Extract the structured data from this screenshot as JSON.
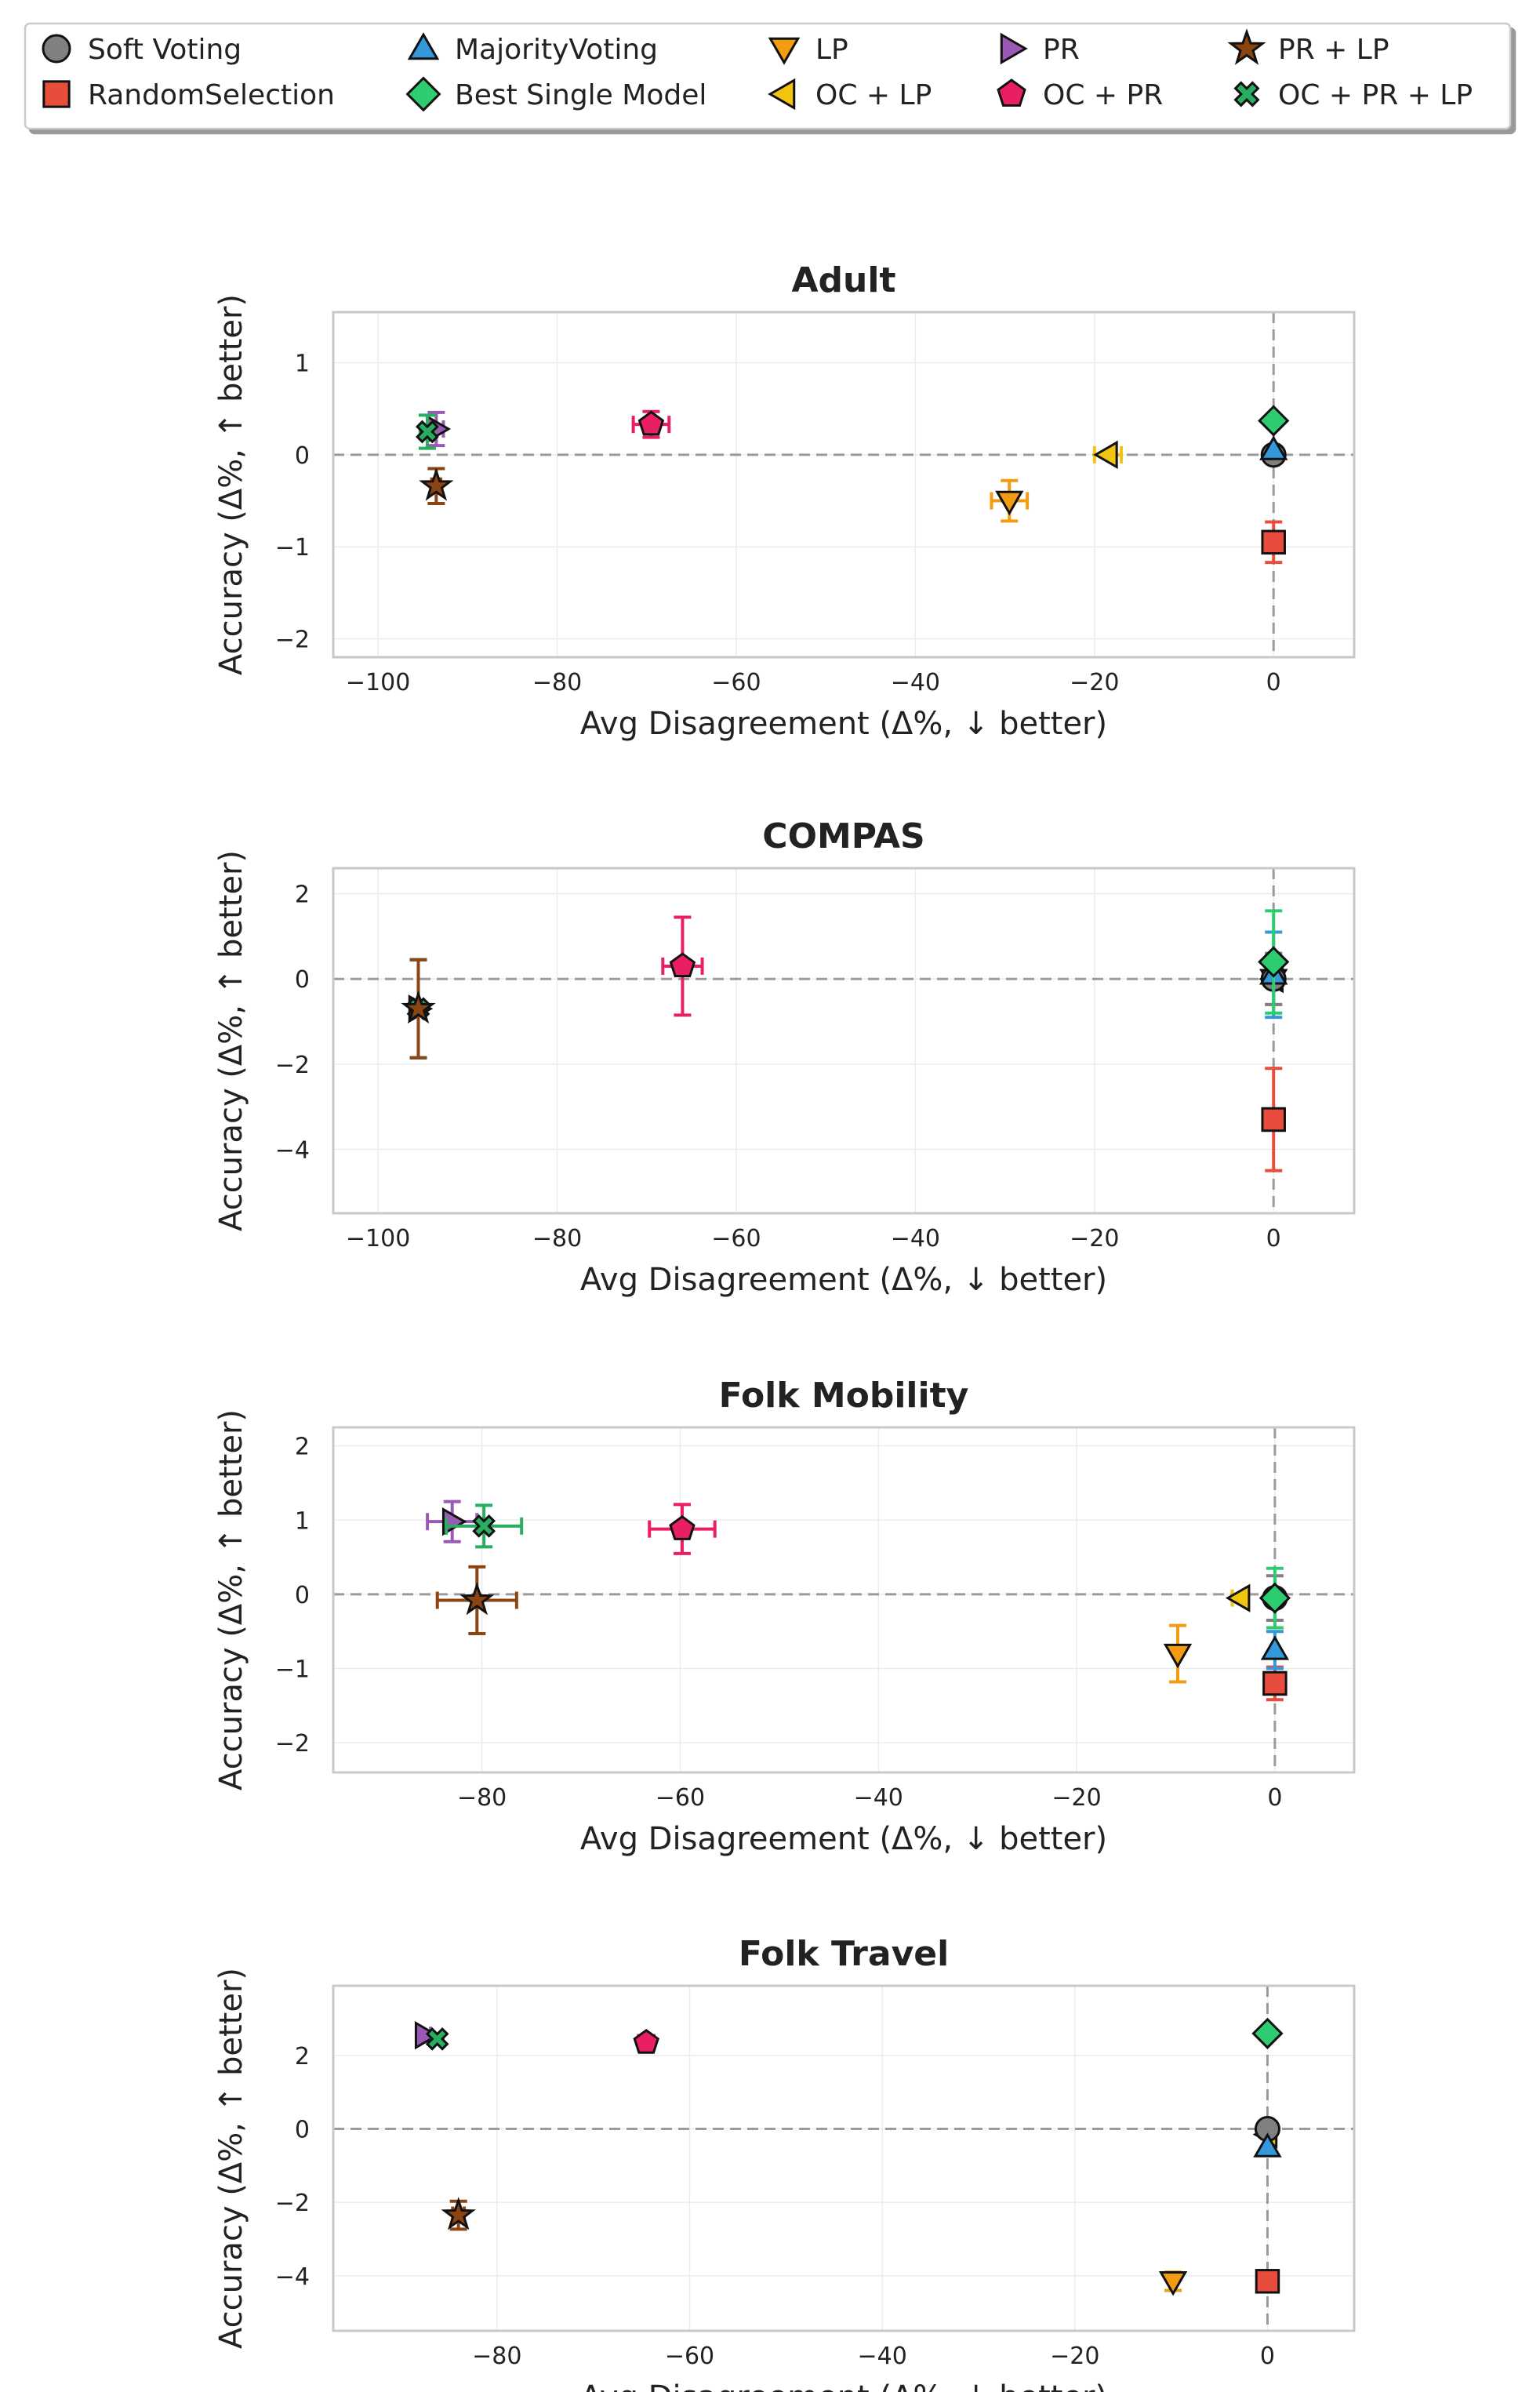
{
  "legend": {
    "entries": [
      {
        "key": "soft_voting",
        "label": "Soft Voting",
        "marker": "circle",
        "color": "#808080"
      },
      {
        "key": "random_selection",
        "label": "RandomSelection",
        "marker": "square",
        "color": "#e74c3c"
      },
      {
        "key": "majority_voting",
        "label": "MajorityVoting",
        "marker": "triangle-up",
        "color": "#3498db"
      },
      {
        "key": "best_single",
        "label": "Best Single Model",
        "marker": "diamond",
        "color": "#2ecc71"
      },
      {
        "key": "lp",
        "label": "LP",
        "marker": "triangle-down",
        "color": "#f39c12"
      },
      {
        "key": "oc_lp",
        "label": "OC + LP",
        "marker": "triangle-left",
        "color": "#f1c40f"
      },
      {
        "key": "pr",
        "label": "PR",
        "marker": "triangle-right",
        "color": "#9b59b6"
      },
      {
        "key": "oc_pr",
        "label": "OC + PR",
        "marker": "pentagon",
        "color": "#e91e63"
      },
      {
        "key": "pr_lp",
        "label": "PR + LP",
        "marker": "star",
        "color": "#8b4513"
      },
      {
        "key": "oc_pr_lp",
        "label": "OC + PR + LP",
        "marker": "x",
        "color": "#27ae60"
      }
    ]
  },
  "chart_data": [
    {
      "type": "scatter",
      "title": "Adult",
      "xlabel": "Avg Disagreement (Δ%, ↓ better)",
      "ylabel": "Accuracy (Δ%, ↑ better)",
      "xlim": [
        -105,
        9
      ],
      "ylim": [
        -2.2,
        1.55
      ],
      "xticks": [
        -100,
        -80,
        -60,
        -40,
        -20,
        0
      ],
      "yticks": [
        -2,
        -1,
        0,
        1
      ],
      "points": [
        {
          "series": "soft_voting",
          "x": 0,
          "y": 0.0,
          "xerr": 0,
          "yerr": 0
        },
        {
          "series": "random_selection",
          "x": 0,
          "y": -0.95,
          "xerr": 0,
          "yerr": 0.22
        },
        {
          "series": "majority_voting",
          "x": 0,
          "y": 0.05,
          "xerr": 0,
          "yerr": 0
        },
        {
          "series": "best_single",
          "x": 0,
          "y": 0.37,
          "xerr": 0,
          "yerr": 0
        },
        {
          "series": "lp",
          "x": -29.5,
          "y": -0.5,
          "xerr": 2,
          "yerr": 0.22
        },
        {
          "series": "oc_lp",
          "x": -18.5,
          "y": 0.0,
          "xerr": 1.5,
          "yerr": 0
        },
        {
          "series": "pr",
          "x": -93.5,
          "y": 0.28,
          "xerr": 0.8,
          "yerr": 0.18
        },
        {
          "series": "oc_pr",
          "x": -69.5,
          "y": 0.33,
          "xerr": 2,
          "yerr": 0.14
        },
        {
          "series": "pr_lp",
          "x": -93.5,
          "y": -0.34,
          "xerr": 0.5,
          "yerr": 0.19
        },
        {
          "series": "oc_pr_lp",
          "x": -94.5,
          "y": 0.25,
          "xerr": 0.8,
          "yerr": 0.18
        }
      ]
    },
    {
      "type": "scatter",
      "title": "COMPAS",
      "xlabel": "Avg Disagreement (Δ%, ↓ better)",
      "ylabel": "Accuracy (Δ%, ↑ better)",
      "xlim": [
        -105,
        9
      ],
      "ylim": [
        -5.5,
        2.6
      ],
      "xticks": [
        -100,
        -80,
        -60,
        -40,
        -20,
        0
      ],
      "yticks": [
        -4,
        -2,
        0,
        2
      ],
      "points": [
        {
          "series": "soft_voting",
          "x": 0,
          "y": 0.0,
          "xerr": 0,
          "yerr": 0.6
        },
        {
          "series": "random_selection",
          "x": 0,
          "y": -3.3,
          "xerr": 0,
          "yerr": 1.2
        },
        {
          "series": "majority_voting",
          "x": 0,
          "y": 0.1,
          "xerr": 0,
          "yerr": 1.0
        },
        {
          "series": "best_single",
          "x": 0,
          "y": 0.4,
          "xerr": 0,
          "yerr": 1.2
        },
        {
          "series": "lp",
          "x": 0,
          "y": 0.0,
          "xerr": 0,
          "yerr": 0.6
        },
        {
          "series": "oc_lp",
          "x": 0,
          "y": 0.0,
          "xerr": 0,
          "yerr": 0
        },
        {
          "series": "pr",
          "x": -95.5,
          "y": -0.7,
          "xerr": 0,
          "yerr": 1.15
        },
        {
          "series": "oc_pr",
          "x": -66,
          "y": 0.3,
          "xerr": 2.2,
          "yerr": 1.15
        },
        {
          "series": "pr_lp",
          "x": -95.5,
          "y": -0.7,
          "xerr": 0,
          "yerr": 1.15
        },
        {
          "series": "oc_pr_lp",
          "x": -95.5,
          "y": -0.7,
          "xerr": 0,
          "yerr": 1.15
        }
      ]
    },
    {
      "type": "scatter",
      "title": "Folk Mobility",
      "xlabel": "Avg Disagreement (Δ%, ↓ better)",
      "ylabel": "Accuracy (Δ%, ↑ better)",
      "xlim": [
        -95,
        8
      ],
      "ylim": [
        -2.4,
        2.25
      ],
      "xticks": [
        -80,
        -60,
        -40,
        -20,
        0
      ],
      "yticks": [
        -2,
        -1,
        0,
        1,
        2
      ],
      "points": [
        {
          "series": "soft_voting",
          "x": 0,
          "y": -0.05,
          "xerr": 0,
          "yerr": 0.3
        },
        {
          "series": "random_selection",
          "x": 0,
          "y": -1.2,
          "xerr": 0,
          "yerr": 0.22
        },
        {
          "series": "majority_voting",
          "x": 0,
          "y": -0.75,
          "xerr": 0,
          "yerr": 0.25
        },
        {
          "series": "best_single",
          "x": 0,
          "y": -0.05,
          "xerr": 0,
          "yerr": 0.4
        },
        {
          "series": "lp",
          "x": -9.8,
          "y": -0.8,
          "xerr": 0,
          "yerr": 0.38
        },
        {
          "series": "oc_lp",
          "x": -3.5,
          "y": -0.05,
          "xerr": 0.8,
          "yerr": 0
        },
        {
          "series": "pr",
          "x": -83,
          "y": 0.98,
          "xerr": 2.5,
          "yerr": 0.27
        },
        {
          "series": "oc_pr",
          "x": -59.8,
          "y": 0.88,
          "xerr": 3.3,
          "yerr": 0.33
        },
        {
          "series": "pr_lp",
          "x": -80.5,
          "y": -0.08,
          "xerr": 4,
          "yerr": 0.45
        },
        {
          "series": "oc_pr_lp",
          "x": -79.8,
          "y": 0.92,
          "xerr": 3.8,
          "yerr": 0.28
        }
      ]
    },
    {
      "type": "scatter",
      "title": "Folk Travel",
      "xlabel": "Avg Disagreement (Δ%, ↓ better)",
      "ylabel": "Accuracy (Δ%, ↑ better)",
      "xlim": [
        -97,
        9
      ],
      "ylim": [
        -5.5,
        3.9
      ],
      "xticks": [
        -80,
        -60,
        -40,
        -20,
        0
      ],
      "yticks": [
        -4,
        -2,
        0,
        2
      ],
      "points": [
        {
          "series": "soft_voting",
          "x": 0,
          "y": 0.0,
          "xerr": 0,
          "yerr": 0
        },
        {
          "series": "random_selection",
          "x": 0,
          "y": -4.15,
          "xerr": 0,
          "yerr": 0.18
        },
        {
          "series": "majority_voting",
          "x": 0,
          "y": -0.5,
          "xerr": 0,
          "yerr": 0
        },
        {
          "series": "best_single",
          "x": 0,
          "y": 2.6,
          "xerr": 0,
          "yerr": 0
        },
        {
          "series": "lp",
          "x": -9.8,
          "y": -4.15,
          "xerr": 0,
          "yerr": 0.25
        },
        {
          "series": "oc_lp",
          "x": 0,
          "y": -0.15,
          "xerr": 0,
          "yerr": 0
        },
        {
          "series": "pr",
          "x": -87.5,
          "y": 2.55,
          "xerr": 0.6,
          "yerr": 0.12
        },
        {
          "series": "oc_pr",
          "x": -64.5,
          "y": 2.35,
          "xerr": 0.8,
          "yerr": 0.12
        },
        {
          "series": "pr_lp",
          "x": -84,
          "y": -2.35,
          "xerr": 0.6,
          "yerr": 0.38
        },
        {
          "series": "oc_pr_lp",
          "x": -86.2,
          "y": 2.45,
          "xerr": 0.6,
          "yerr": 0.12
        }
      ]
    }
  ]
}
